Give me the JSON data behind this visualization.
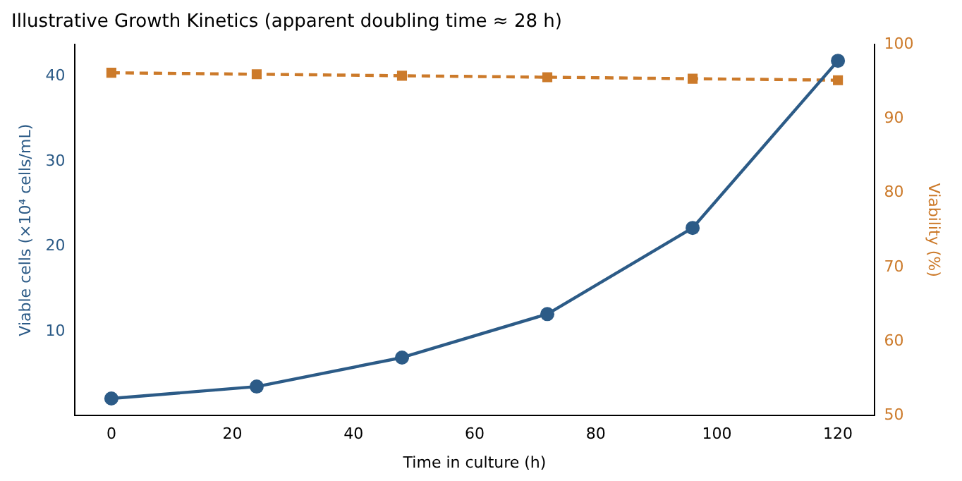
{
  "chart_data": {
    "type": "line",
    "title": "Illustrative Growth Kinetics (apparent doubling time ≈ 28 h)",
    "xlabel": "Time in culture (h)",
    "ylabel": "Viable cells (×10⁴ cells/mL)",
    "y2label": "Viability (%)",
    "x": [
      0,
      24,
      48,
      72,
      96,
      120
    ],
    "series": [
      {
        "color": "#2c5b87",
        "values": [
          2.2,
          3.6,
          7.0,
          12.1,
          22.2,
          41.8
        ],
        "marker": "circle",
        "line_style": "solid"
      },
      {
        "color": "#cc7a2a",
        "values": [
          96.2,
          96.0,
          95.8,
          95.6,
          95.4,
          95.2
        ],
        "axis": "y2",
        "marker": "square",
        "line_style": "dashed"
      }
    ],
    "xlim": [
      -6,
      126
    ],
    "xticks": [
      0,
      20,
      40,
      60,
      80,
      100,
      120
    ],
    "ylim": [
      0.2,
      43.7
    ],
    "yticks": [
      10,
      20,
      30,
      40
    ],
    "y2lim": [
      50,
      100
    ],
    "y2ticks": [
      50,
      60,
      70,
      80,
      90,
      100
    ],
    "grid": false,
    "legend": false
  }
}
